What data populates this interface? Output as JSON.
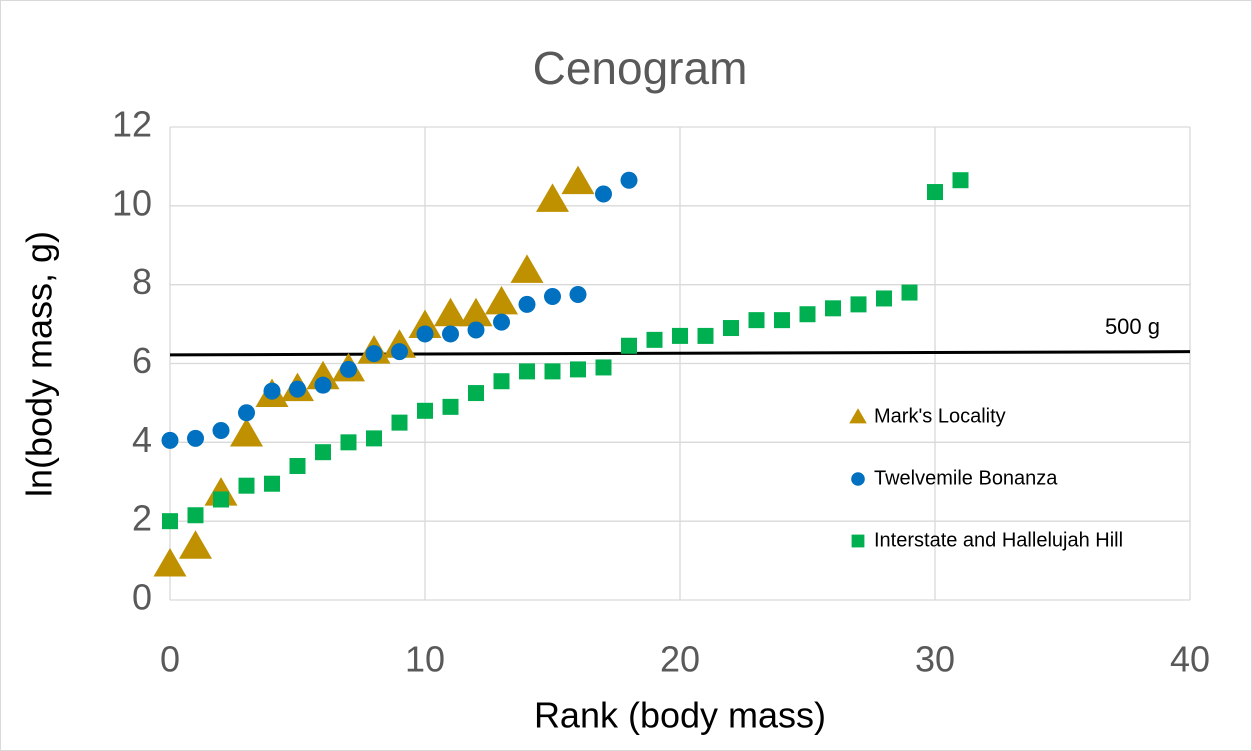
{
  "chart_data": {
    "type": "scatter",
    "title": "Cenogram",
    "xlabel": "Rank (body mass)",
    "ylabel": "ln(body mass, g)",
    "xlim": [
      0,
      40
    ],
    "xticks": [
      0,
      10,
      20,
      30,
      40
    ],
    "ylim": [
      0,
      12
    ],
    "yticks": [
      0,
      2,
      4,
      6,
      8,
      10,
      12
    ],
    "grid": true,
    "legend": "right",
    "series": [
      {
        "name": "Mark's Locality",
        "color": "#bf9000",
        "marker": "triangle",
        "x": [
          0,
          1,
          2,
          3,
          4,
          5,
          6,
          7,
          8,
          9,
          10,
          11,
          12,
          13,
          14,
          15,
          16
        ],
        "values": [
          0.9,
          1.35,
          2.7,
          4.2,
          5.2,
          5.35,
          5.65,
          5.85,
          6.3,
          6.45,
          6.95,
          7.25,
          7.25,
          7.55,
          8.35,
          10.15,
          10.6
        ]
      },
      {
        "name": "Twelvemile Bonanza",
        "color": "#0070c0",
        "marker": "circle",
        "x": [
          0,
          1,
          2,
          3,
          4,
          5,
          6,
          7,
          8,
          9,
          10,
          11,
          12,
          13,
          14,
          15,
          16,
          17,
          18
        ],
        "values": [
          4.05,
          4.1,
          4.3,
          4.75,
          5.3,
          5.35,
          5.45,
          5.85,
          6.25,
          6.3,
          6.75,
          6.75,
          6.85,
          7.05,
          7.5,
          7.7,
          7.75,
          10.3,
          10.65
        ]
      },
      {
        "name": "Interstate and Hallelujah Hill",
        "color": "#00b050",
        "marker": "square",
        "x": [
          0,
          1,
          2,
          3,
          4,
          5,
          6,
          7,
          8,
          9,
          10,
          11,
          12,
          13,
          14,
          15,
          16,
          17,
          18,
          19,
          20,
          21,
          22,
          23,
          24,
          25,
          26,
          27,
          28,
          29,
          30,
          31
        ],
        "values": [
          2.0,
          2.15,
          2.55,
          2.9,
          2.95,
          3.4,
          3.75,
          4.0,
          4.1,
          4.5,
          4.8,
          4.9,
          5.25,
          5.55,
          5.8,
          5.8,
          5.85,
          5.9,
          6.45,
          6.6,
          6.7,
          6.7,
          6.9,
          7.1,
          7.1,
          7.25,
          7.4,
          7.5,
          7.65,
          7.8,
          10.35,
          10.65
        ]
      }
    ],
    "reference_line": {
      "label": "500 g",
      "color": "#000000",
      "x": [
        0,
        40
      ],
      "values": [
        6.22,
        6.3
      ]
    }
  }
}
